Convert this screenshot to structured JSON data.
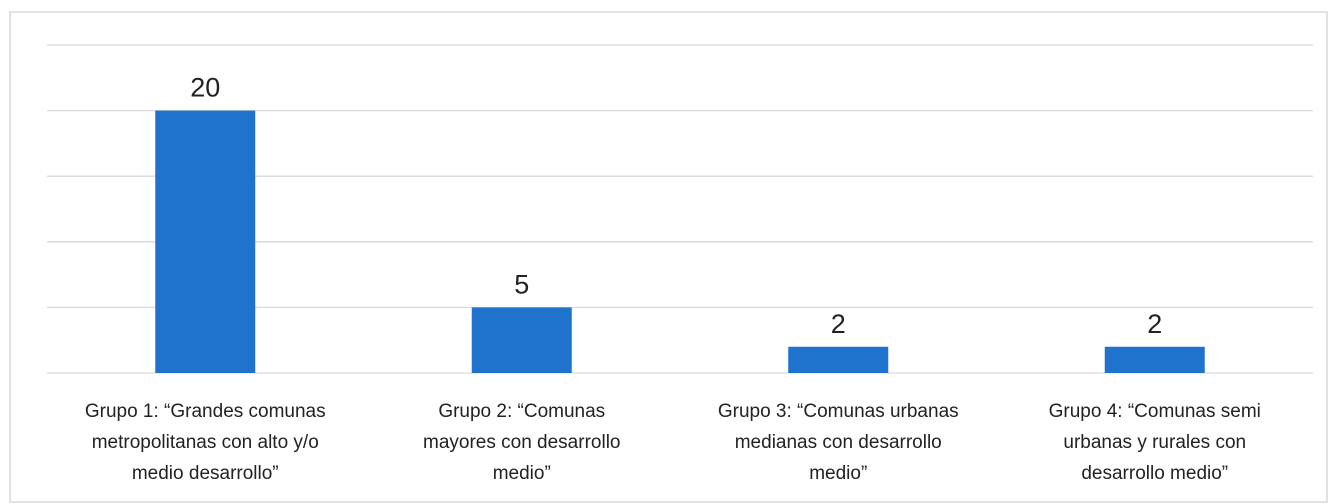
{
  "chart_data": {
    "type": "bar",
    "categories": [
      "Grupo 1: “Grandes comunas\nmetropolitanas con alto y/o\nmedio desarrollo”",
      "Grupo 2: “Comunas\nmayores con desarrollo\nmedio”",
      "Grupo 3: “Comunas urbanas\nmedianas con desarrollo\nmedio”",
      "Grupo 4: “Comunas semi\nurbanas y rurales con\ndesarrollo medio”"
    ],
    "values": [
      20,
      5,
      2,
      2
    ],
    "color": "#1f73cc",
    "ylim": [
      0,
      25
    ],
    "yticks": [
      0,
      5,
      10,
      15,
      20,
      25
    ],
    "grid": true
  }
}
